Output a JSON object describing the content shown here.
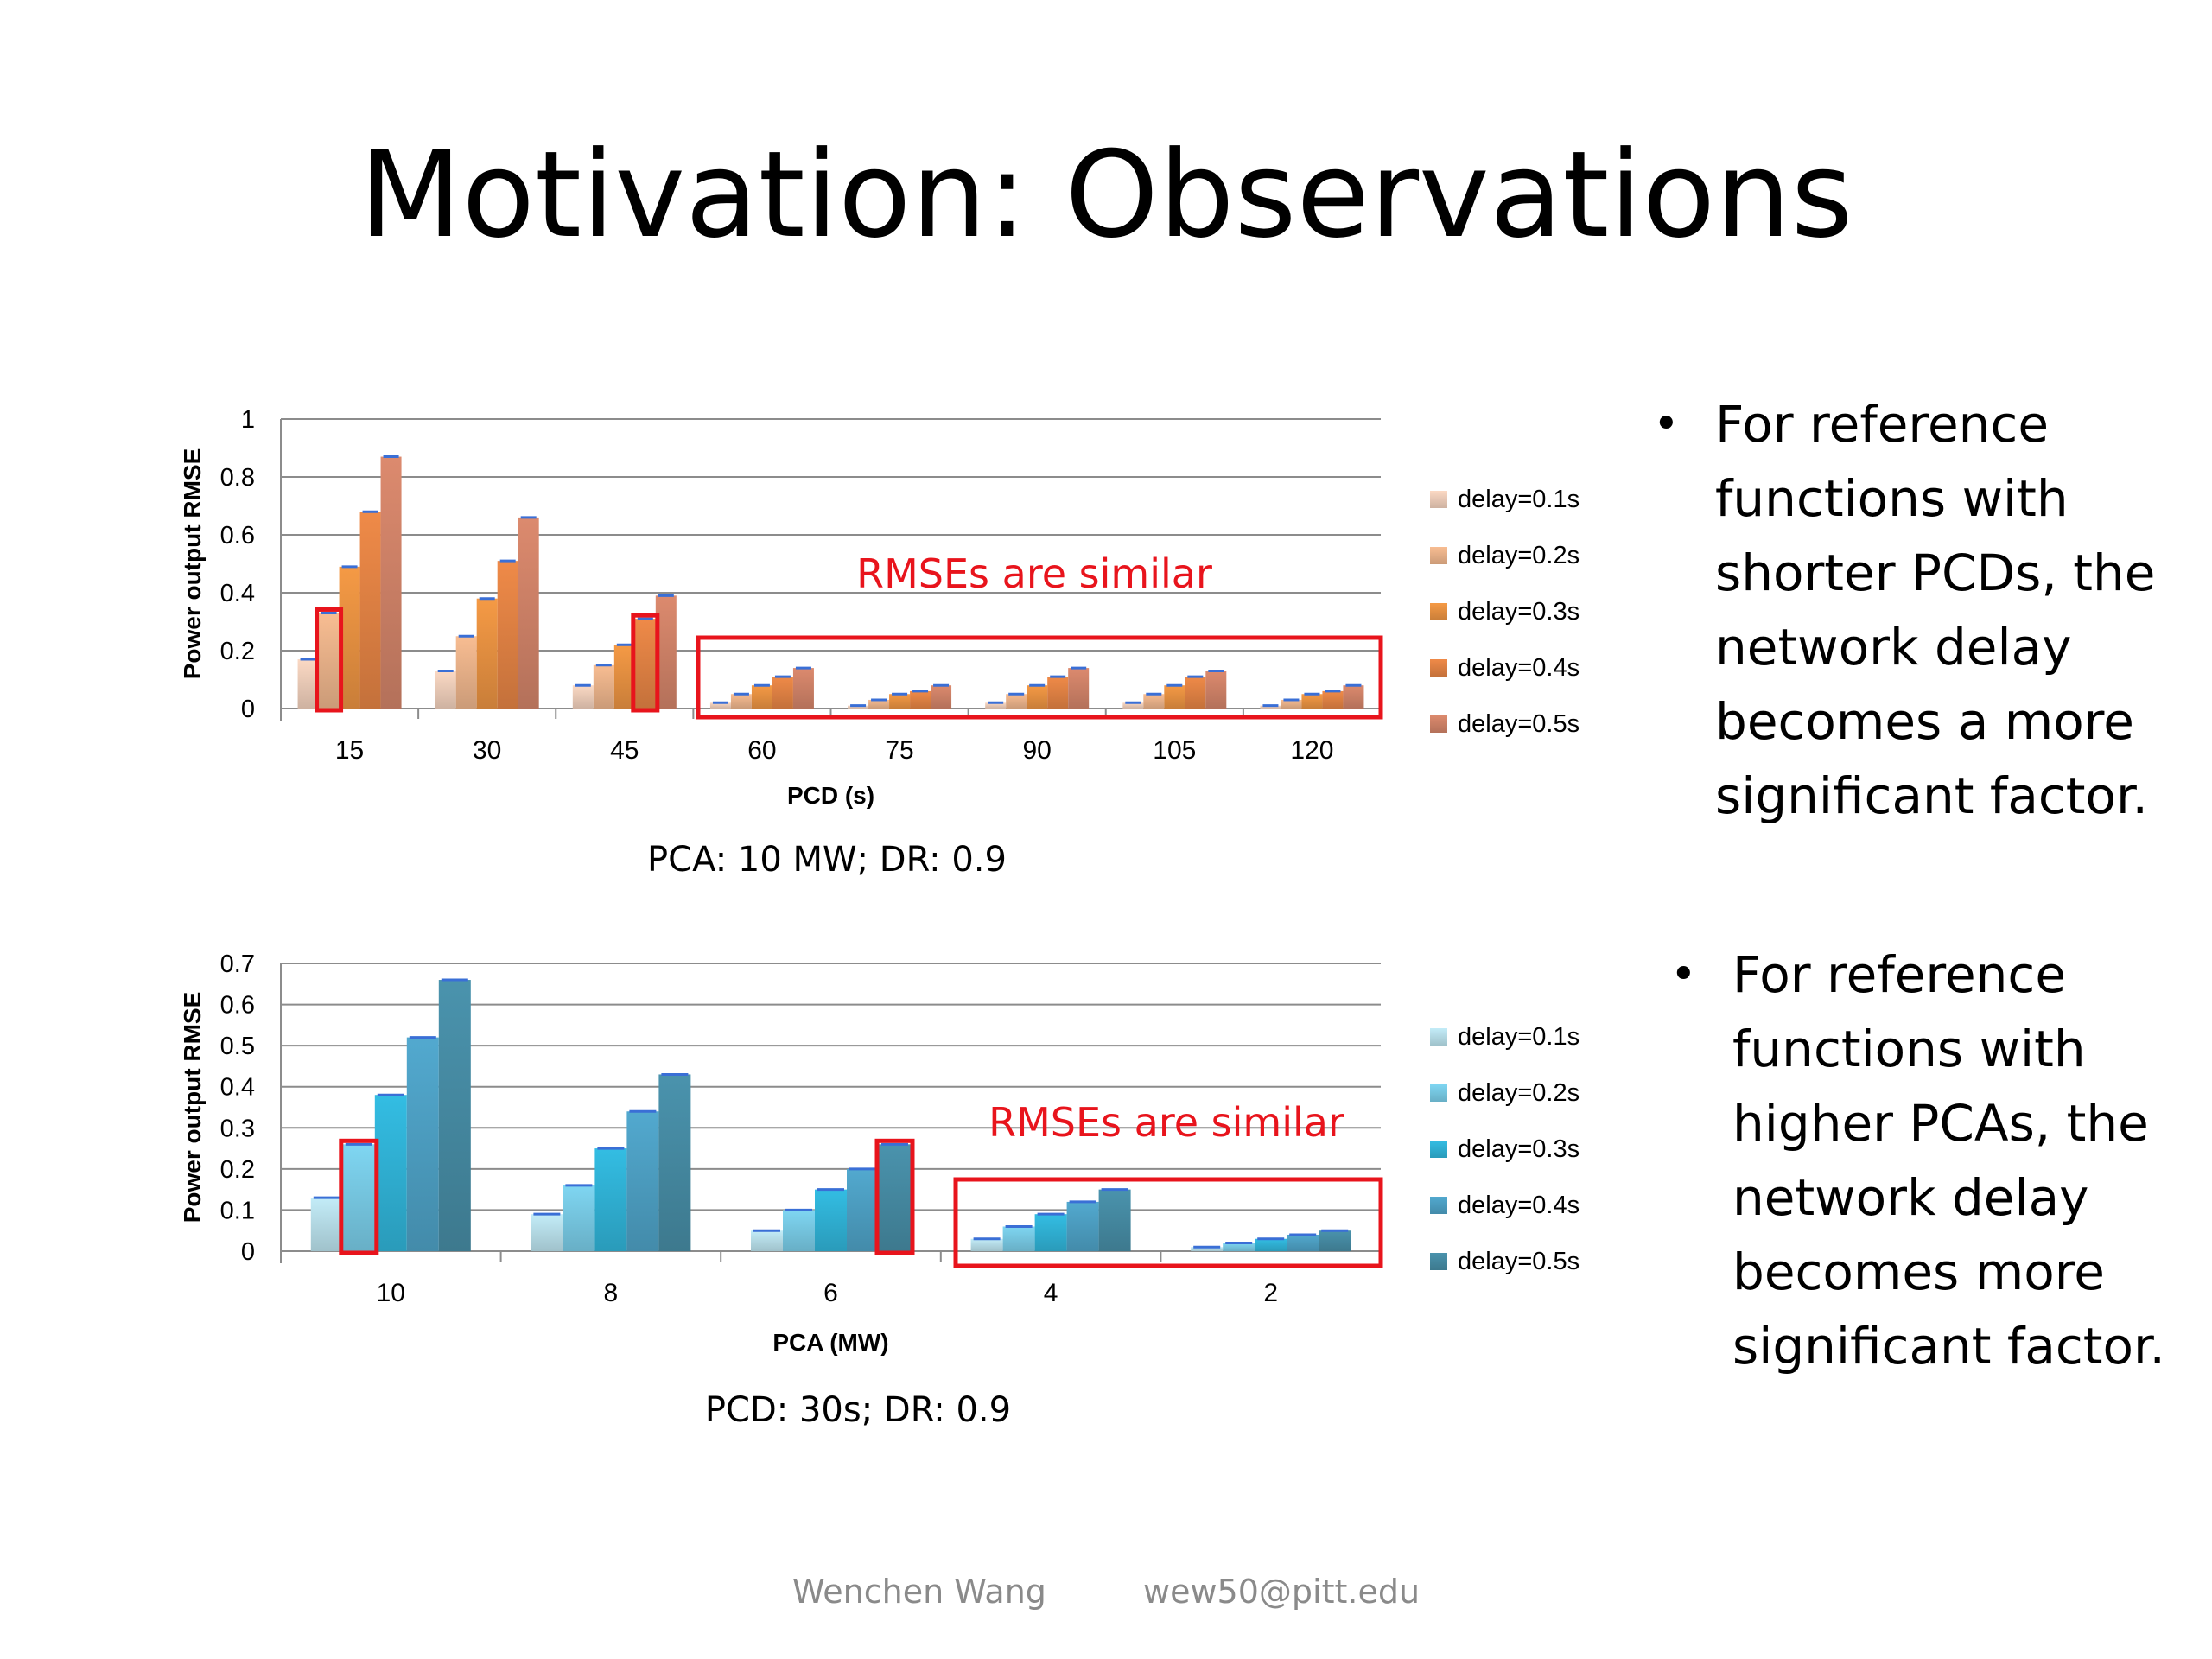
{
  "slide": {
    "title": "Motivation: Observations",
    "bullets": [
      "For reference functions with shorter PCDs, the network delay becomes a more significant factor.",
      "For reference functions with higher PCAs, the network delay becomes more significant factor."
    ],
    "footer": {
      "author": "Wenchen Wang",
      "email": "wew50@pitt.edu"
    }
  },
  "chart_data": [
    {
      "type": "bar",
      "title": "",
      "caption": "PCA: 10 MW; DR: 0.9",
      "xlabel": "PCD (s)",
      "ylabel": "Power output RMSE",
      "ylim": [
        0,
        1
      ],
      "yticks": [
        0,
        0.2,
        0.4,
        0.6,
        0.8,
        1
      ],
      "ytick_labels": [
        "0",
        "0.2",
        "0.4",
        "0.6",
        "0.8",
        "1"
      ],
      "grid": true,
      "legend_position": "right",
      "categories": [
        "15",
        "30",
        "45",
        "60",
        "75",
        "90",
        "105",
        "120"
      ],
      "series": [
        {
          "name": "delay=0.1s",
          "color": "#fbd9c4",
          "values": [
            0.17,
            0.13,
            0.08,
            0.02,
            0.01,
            0.02,
            0.02,
            0.01
          ]
        },
        {
          "name": "delay=0.2s",
          "color": "#f8bd92",
          "values": [
            0.33,
            0.25,
            0.15,
            0.05,
            0.03,
            0.05,
            0.05,
            0.03
          ]
        },
        {
          "name": "delay=0.3s",
          "color": "#f59a45",
          "values": [
            0.49,
            0.38,
            0.22,
            0.08,
            0.05,
            0.08,
            0.08,
            0.05
          ]
        },
        {
          "name": "delay=0.4s",
          "color": "#ef8a48",
          "values": [
            0.68,
            0.51,
            0.31,
            0.11,
            0.06,
            0.11,
            0.11,
            0.06
          ]
        },
        {
          "name": "delay=0.5s",
          "color": "#dc8a6e",
          "values": [
            0.87,
            0.66,
            0.39,
            0.14,
            0.08,
            0.14,
            0.13,
            0.08
          ]
        }
      ],
      "annotation": {
        "text": "RMSEs are similar",
        "color": "#e8141c"
      },
      "highlights": [
        {
          "category": 0,
          "series": 1
        },
        {
          "category": 2,
          "series": 3
        }
      ],
      "highlight_group": {
        "from": 3,
        "to": 7
      }
    },
    {
      "type": "bar",
      "title": "",
      "caption": "PCD: 30s; DR: 0.9",
      "xlabel": "PCA (MW)",
      "ylabel": "Power output RMSE",
      "ylim": [
        0,
        0.7
      ],
      "yticks": [
        0,
        0.1,
        0.2,
        0.3,
        0.4,
        0.5,
        0.6,
        0.7
      ],
      "ytick_labels": [
        "0",
        "0.1",
        "0.2",
        "0.3",
        "0.4",
        "0.5",
        "0.6",
        "0.7"
      ],
      "grid": true,
      "legend_position": "right",
      "categories": [
        "10",
        "8",
        "6",
        "4",
        "2"
      ],
      "series": [
        {
          "name": "delay=0.1s",
          "color": "#c3ecf8",
          "values": [
            0.13,
            0.09,
            0.05,
            0.03,
            0.01
          ]
        },
        {
          "name": "delay=0.2s",
          "color": "#7fd6f2",
          "values": [
            0.26,
            0.16,
            0.1,
            0.06,
            0.02
          ]
        },
        {
          "name": "delay=0.3s",
          "color": "#33bde3",
          "values": [
            0.38,
            0.25,
            0.15,
            0.09,
            0.03
          ]
        },
        {
          "name": "delay=0.4s",
          "color": "#52a9cf",
          "values": [
            0.52,
            0.34,
            0.2,
            0.12,
            0.04
          ]
        },
        {
          "name": "delay=0.5s",
          "color": "#4a93ad",
          "values": [
            0.66,
            0.43,
            0.26,
            0.15,
            0.05
          ]
        }
      ],
      "annotation": {
        "text": "RMSEs are similar",
        "color": "#e8141c"
      },
      "highlights": [
        {
          "category": 0,
          "series": 1
        },
        {
          "category": 2,
          "series": 4
        }
      ],
      "highlight_group": {
        "from": 3,
        "to": 4
      }
    }
  ]
}
